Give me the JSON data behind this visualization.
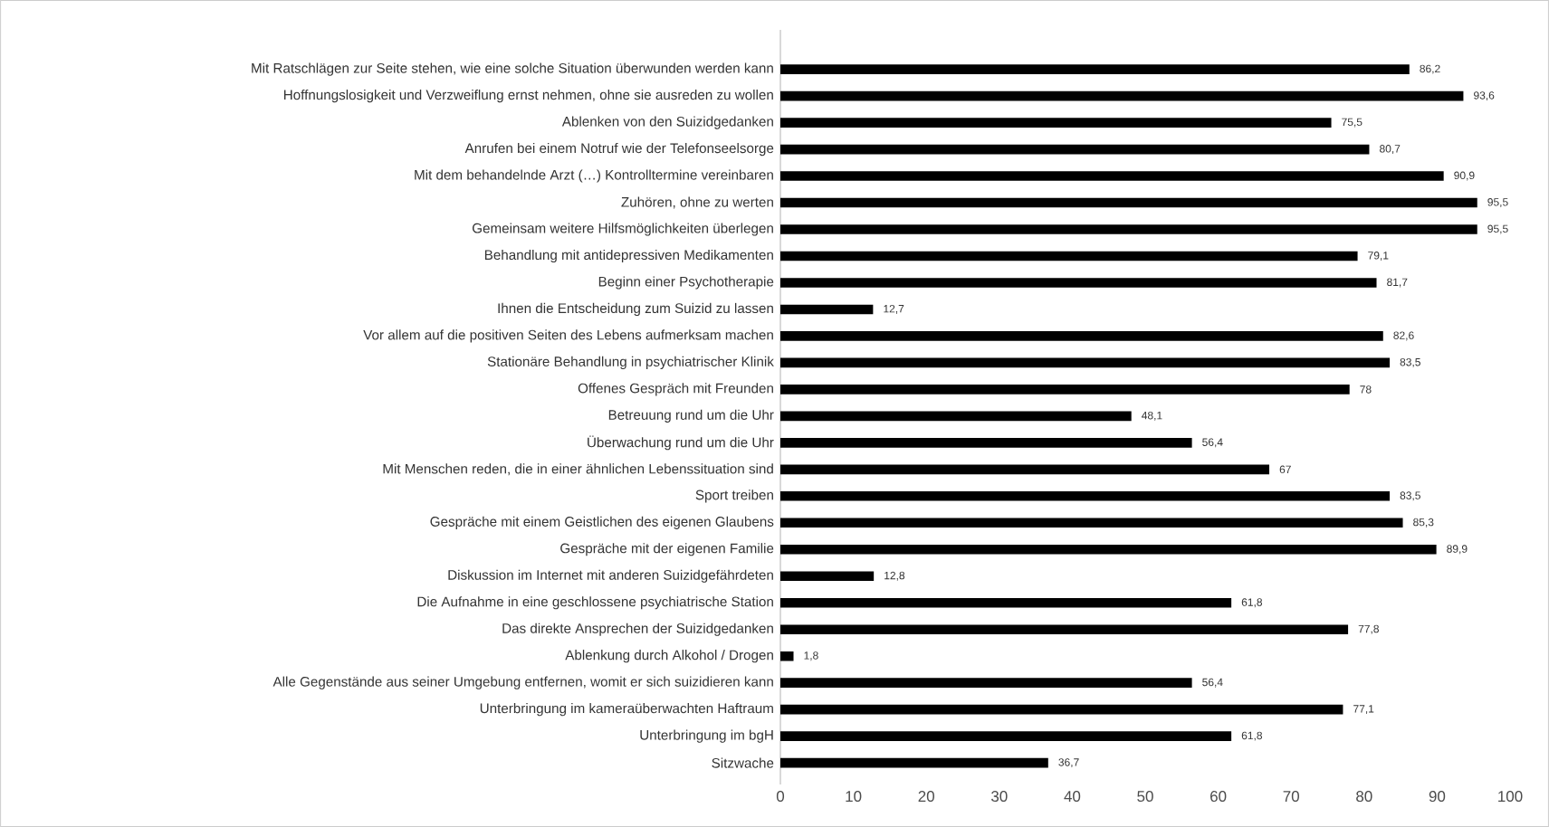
{
  "chart_data": {
    "type": "bar",
    "orientation": "horizontal",
    "color": "#000000",
    "categories": [
      "Mit Ratschlägen zur Seite stehen, wie eine solche Situation überwunden werden kann",
      "Hoffnungslosigkeit und Verzweiflung ernst nehmen, ohne sie ausreden zu wollen",
      "Ablenken von den Suizidgedanken",
      "Anrufen bei einem Notruf wie der Telefonseelsorge",
      "Mit dem behandelnde Arzt (…) Kontrolltermine vereinbaren",
      "Zuhören, ohne zu werten",
      "Gemeinsam weitere Hilfsmöglichkeiten überlegen",
      "Behandlung mit antidepressiven Medikamenten",
      "Beginn einer Psychotherapie",
      "Ihnen die Entscheidung zum Suizid zu lassen",
      "Vor allem auf die positiven Seiten des Lebens aufmerksam machen",
      "Stationäre Behandlung in psychiatrischer Klinik",
      "Offenes Gespräch mit Freunden",
      "Betreuung rund um die Uhr",
      "Überwachung rund um die Uhr",
      "Mit Menschen reden, die in einer ähnlichen Lebenssituation sind",
      "Sport treiben",
      "Gespräche mit einem Geistlichen des eigenen Glaubens",
      "Gespräche mit der eigenen Familie",
      "Diskussion im Internet mit anderen Suizidgefährdeten",
      "Die Aufnahme in eine geschlossene psychiatrische Station",
      "Das direkte Ansprechen der Suizidgedanken",
      "Ablenkung durch Alkohol / Drogen",
      "Alle Gegenstände aus seiner Umgebung entfernen, womit er sich suizidieren kann",
      "Unterbringung im kameraüberwachten Haftraum",
      "Unterbringung im bgH",
      "Sitzwache"
    ],
    "values": [
      86.2,
      93.6,
      75.5,
      80.7,
      90.9,
      95.5,
      95.5,
      79.1,
      81.7,
      12.7,
      82.6,
      83.5,
      78,
      48.1,
      56.4,
      67,
      83.5,
      85.3,
      89.9,
      12.8,
      61.8,
      77.8,
      1.8,
      56.4,
      77.1,
      61.8,
      36.7
    ],
    "value_labels": [
      "86,2",
      "93,6",
      "75,5",
      "80,7",
      "90,9",
      "95,5",
      "95,5",
      "79,1",
      "81,7",
      "12,7",
      "82,6",
      "83,5",
      "78",
      "48,1",
      "56,4",
      "67",
      "83,5",
      "85,3",
      "89,9",
      "12,8",
      "61,8",
      "77,8",
      "1,8",
      "56,4",
      "77,1",
      "61,8",
      "36,7"
    ],
    "xlim": [
      0,
      100
    ],
    "xticks": [
      0,
      10,
      20,
      30,
      40,
      50,
      60,
      70,
      80,
      90,
      100
    ]
  }
}
